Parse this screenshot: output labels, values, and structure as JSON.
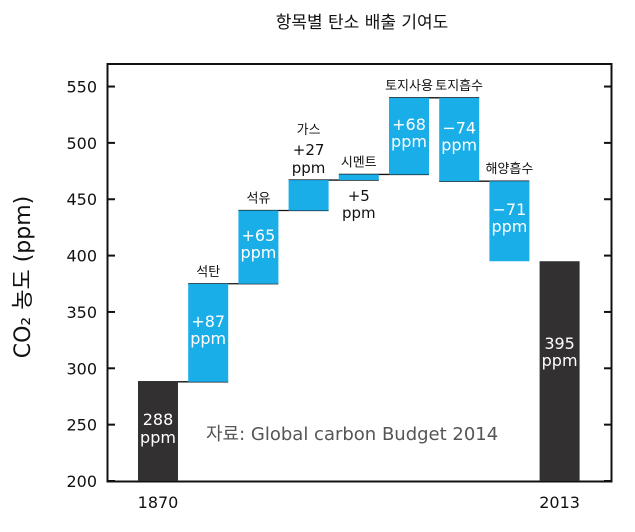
{
  "chart_data": {
    "type": "bar",
    "subtype": "waterfall",
    "title": "항목별 탄소 배출 기여도",
    "ylabel": "CO₂ 농도 (ppm)",
    "ylim": [
      200,
      570
    ],
    "yticks": [
      200,
      250,
      300,
      350,
      400,
      450,
      500,
      550
    ],
    "x_tick_labels": [
      "1870",
      "2013"
    ],
    "source": "자료: Global carbon Budget 2014",
    "grid": false,
    "colors": {
      "total": "#333031",
      "change": "#1aaee8",
      "frame": "#111111",
      "label_on_bar": "#ffffff",
      "text": "#111111"
    },
    "bars": [
      {
        "kind": "total",
        "name": "",
        "start": 200,
        "end": 288,
        "value_label": "288",
        "unit": "ppm"
      },
      {
        "kind": "change",
        "name": "석탄",
        "start": 288,
        "end": 375,
        "value_label": "+87",
        "unit": "ppm"
      },
      {
        "kind": "change",
        "name": "석유",
        "start": 375,
        "end": 440,
        "value_label": "+65",
        "unit": "ppm"
      },
      {
        "kind": "change",
        "name": "가스",
        "start": 440,
        "end": 467,
        "value_label": "+27",
        "unit": "ppm"
      },
      {
        "kind": "change",
        "name": "시멘트",
        "start": 467,
        "end": 472,
        "value_label": "+5",
        "unit": "ppm"
      },
      {
        "kind": "change",
        "name": "토지사용",
        "start": 472,
        "end": 540,
        "value_label": "+68",
        "unit": "ppm"
      },
      {
        "kind": "change",
        "name": "토지흡수",
        "start": 540,
        "end": 466,
        "value_label": "−74",
        "unit": "ppm"
      },
      {
        "kind": "change",
        "name": "해양흡수",
        "start": 466,
        "end": 395,
        "value_label": "−71",
        "unit": "ppm"
      },
      {
        "kind": "total",
        "name": "",
        "start": 200,
        "end": 395,
        "value_label": "395",
        "unit": "ppm"
      }
    ]
  }
}
